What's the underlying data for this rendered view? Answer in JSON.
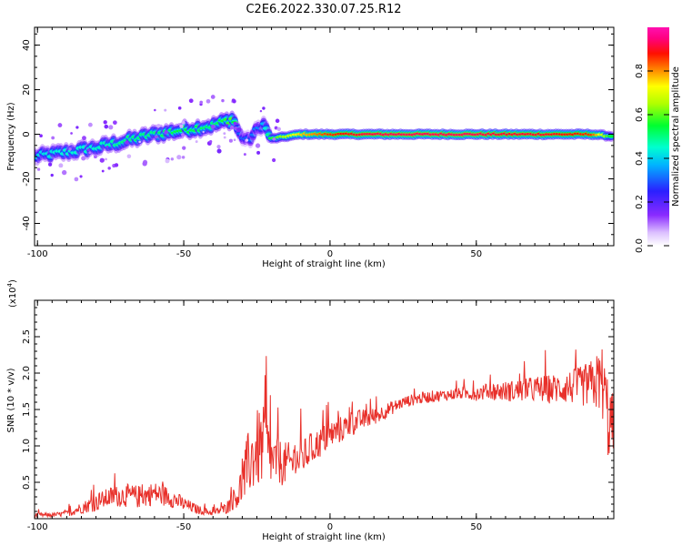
{
  "title": "C2E6.2022.330.07.25.R12",
  "colors": {
    "snr_line": "#e8302a",
    "frame": "#000000",
    "background": "#ffffff"
  },
  "chart_data": [
    {
      "type": "heatmap",
      "title": "C2E6.2022.330.07.25.R12",
      "xlabel": "Height of straight line (km)",
      "ylabel": "Frequency (Hz)",
      "xlim": [
        -101,
        97
      ],
      "ylim": [
        -50,
        48
      ],
      "xticks": [
        -100,
        -50,
        0,
        50
      ],
      "yticks": [
        -40,
        -20,
        0,
        20,
        40
      ],
      "grid": false,
      "colorbar": {
        "label": "Normalized spectral amplitude",
        "range": [
          0,
          1
        ],
        "ticks": [
          "0.0",
          "0.2",
          "0.4",
          "0.6",
          "0.8"
        ],
        "colormap": "rainbow (white-violet-blue-cyan-green-yellow-orange-red-magenta)"
      },
      "ridge": {
        "description": "frequency of peak spectral amplitude vs height",
        "x": [
          -101,
          -90,
          -80,
          -70,
          -60,
          -50,
          -40,
          -33,
          -31,
          -28,
          -23,
          -20,
          -10,
          0,
          10,
          20,
          30,
          40,
          50,
          60,
          70,
          80,
          90,
          97
        ],
        "frequency": [
          -10,
          -8,
          -6,
          -3,
          0,
          2,
          4,
          7,
          0,
          -3,
          5,
          -2,
          0,
          0,
          0,
          0,
          0,
          0,
          0,
          0,
          0,
          0,
          0,
          -1
        ],
        "amplitude": [
          0.4,
          0.45,
          0.45,
          0.5,
          0.5,
          0.55,
          0.5,
          0.6,
          0.3,
          0.3,
          0.35,
          0.55,
          0.75,
          0.85,
          0.9,
          0.92,
          0.92,
          0.92,
          0.92,
          0.9,
          0.9,
          0.88,
          0.85,
          0.5
        ]
      }
    },
    {
      "type": "line",
      "xlabel": "Height of straight line (km)",
      "ylabel": "SNR (10 * v/v)",
      "scale_label": "(x10",
      "scale_exponent": "4",
      "xlim": [
        -101,
        97
      ],
      "ylim": [
        0,
        3
      ],
      "xticks": [
        -100,
        -50,
        0,
        50
      ],
      "yticks": [
        "0.5",
        "1.0",
        "1.5",
        "2.0",
        "2.5"
      ],
      "grid": false,
      "series": [
        {
          "x": [
            -101,
            -95,
            -90,
            -85,
            -80,
            -75,
            -70,
            -65,
            -60,
            -55,
            -50,
            -45,
            -40,
            -35,
            -32,
            -30,
            -28,
            -25,
            -22,
            -20,
            -15,
            -10,
            -5,
            0,
            5,
            10,
            15,
            20,
            25,
            30,
            35,
            40,
            45,
            50,
            55,
            60,
            65,
            70,
            75,
            80,
            85,
            90,
            93,
            95,
            97
          ],
          "y": [
            0.05,
            0.05,
            0.07,
            0.15,
            0.22,
            0.3,
            0.32,
            0.3,
            0.35,
            0.3,
            0.2,
            0.12,
            0.08,
            0.15,
            0.3,
            0.45,
            0.75,
            0.95,
            1.0,
            0.8,
            0.75,
            0.82,
            1.0,
            1.15,
            1.25,
            1.35,
            1.4,
            1.5,
            1.6,
            1.65,
            1.68,
            1.7,
            1.72,
            1.72,
            1.75,
            1.75,
            1.76,
            1.78,
            1.78,
            1.8,
            1.82,
            1.85,
            1.9,
            1.4,
            1.2
          ],
          "noise": [
            0.03,
            0.03,
            0.04,
            0.08,
            0.12,
            0.14,
            0.16,
            0.16,
            0.16,
            0.14,
            0.1,
            0.06,
            0.04,
            0.08,
            0.15,
            0.35,
            0.45,
            0.55,
            0.55,
            0.35,
            0.3,
            0.25,
            0.22,
            0.2,
            0.18,
            0.15,
            0.12,
            0.1,
            0.08,
            0.08,
            0.08,
            0.08,
            0.08,
            0.1,
            0.12,
            0.14,
            0.16,
            0.18,
            0.2,
            0.22,
            0.26,
            0.35,
            0.5,
            0.6,
            0.5
          ]
        }
      ]
    }
  ]
}
